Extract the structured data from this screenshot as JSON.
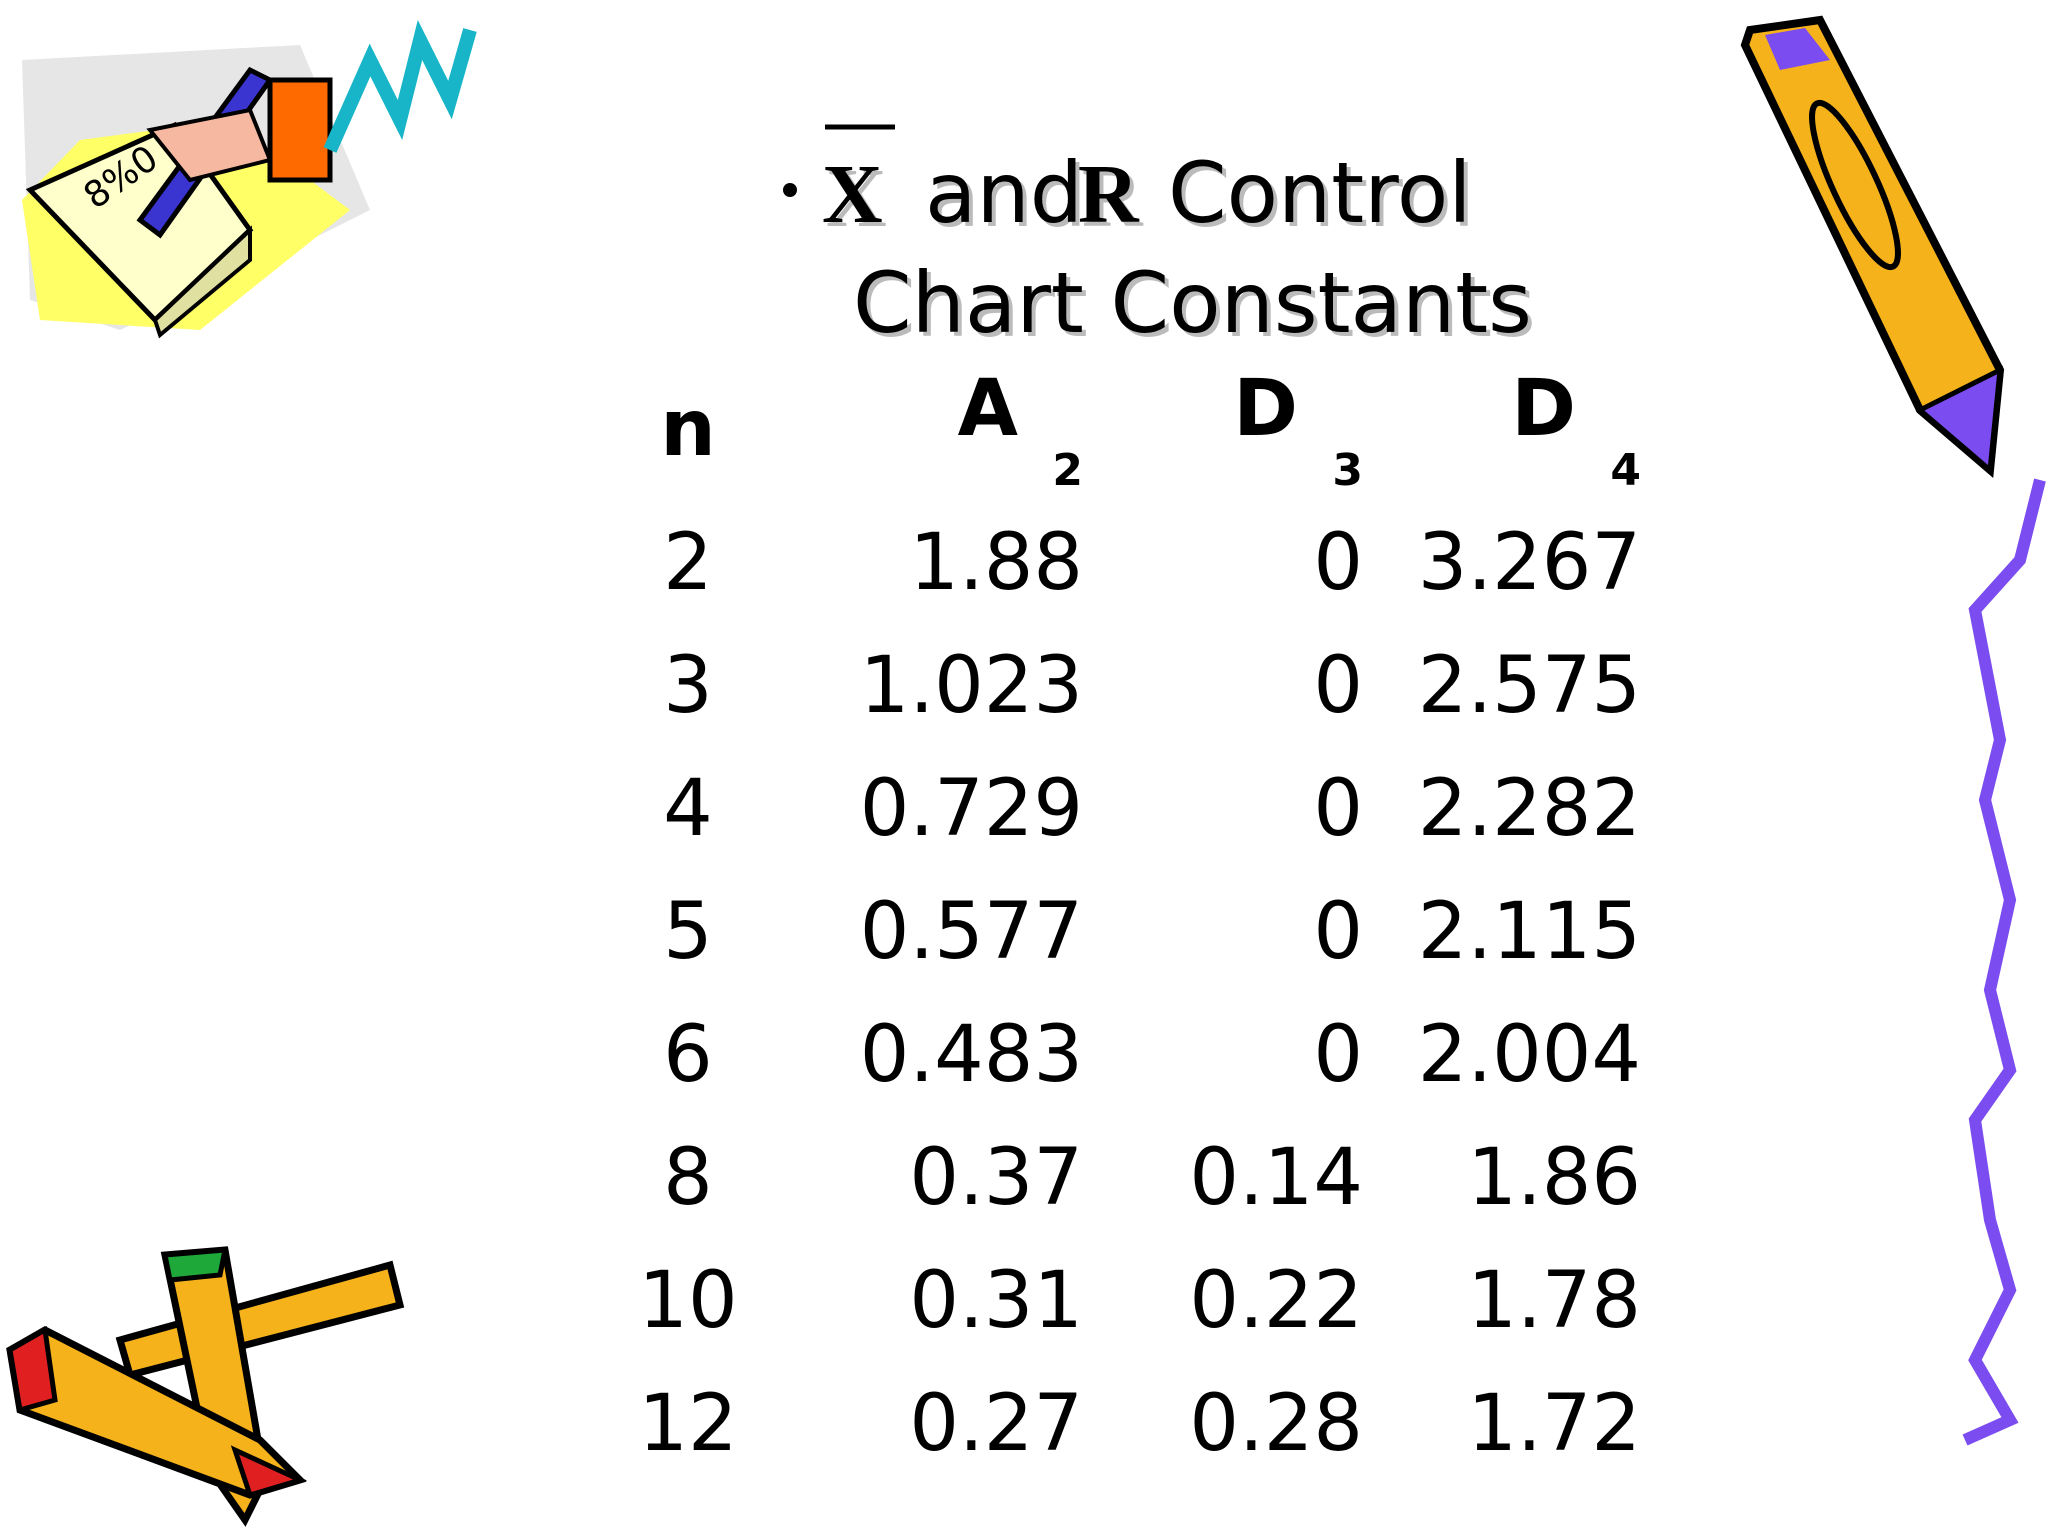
{
  "title": {
    "x_bar": "X",
    "and": "and",
    "r": "R",
    "control": "Control",
    "line2": "Chart Constants"
  },
  "table": {
    "header": [
      {
        "letter": "n"
      },
      {
        "letter": "A",
        "sub": "2"
      },
      {
        "letter": "D",
        "sub": "3"
      },
      {
        "letter": "D",
        "sub": "4"
      }
    ],
    "rows": [
      [
        "2",
        "1.88",
        "0",
        "3.267"
      ],
      [
        "3",
        "1.023",
        "0",
        "2.575"
      ],
      [
        "4",
        "0.729",
        "0",
        "2.282"
      ],
      [
        "5",
        "0.577",
        "0",
        "2.115"
      ],
      [
        "6",
        "0.483",
        "0",
        "2.004"
      ],
      [
        "8",
        "0.37",
        "0.14",
        "1.86"
      ],
      [
        "10",
        "0.31",
        "0.22",
        "1.78"
      ],
      [
        "12",
        "0.27",
        "0.28",
        "1.72"
      ]
    ]
  }
}
